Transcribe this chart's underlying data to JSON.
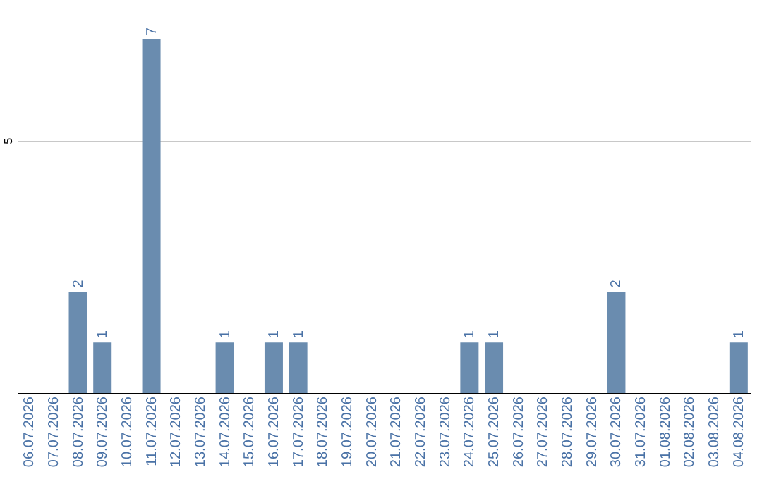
{
  "chart_data": {
    "type": "bar",
    "categories": [
      "06.07.2026",
      "07.07.2026",
      "08.07.2026",
      "09.07.2026",
      "10.07.2026",
      "11.07.2026",
      "12.07.2026",
      "13.07.2026",
      "14.07.2026",
      "15.07.2026",
      "16.07.2026",
      "17.07.2026",
      "18.07.2026",
      "19.07.2026",
      "20.07.2026",
      "21.07.2026",
      "22.07.2026",
      "23.07.2026",
      "24.07.2026",
      "25.07.2026",
      "26.07.2026",
      "27.07.2026",
      "28.07.2026",
      "29.07.2026",
      "30.07.2026",
      "31.07.2026",
      "01.08.2026",
      "02.08.2026",
      "03.08.2026",
      "04.08.2026"
    ],
    "values": [
      null,
      null,
      2,
      1,
      null,
      7,
      null,
      null,
      1,
      null,
      1,
      1,
      null,
      null,
      null,
      null,
      null,
      null,
      1,
      1,
      null,
      null,
      null,
      null,
      2,
      null,
      null,
      null,
      null,
      1
    ],
    "color": "#6a8caf",
    "ylim": [
      0,
      7
    ],
    "yticks": [
      {
        "value": 0,
        "label": null
      },
      5
    ],
    "grid": "y",
    "data_labels": true
  }
}
